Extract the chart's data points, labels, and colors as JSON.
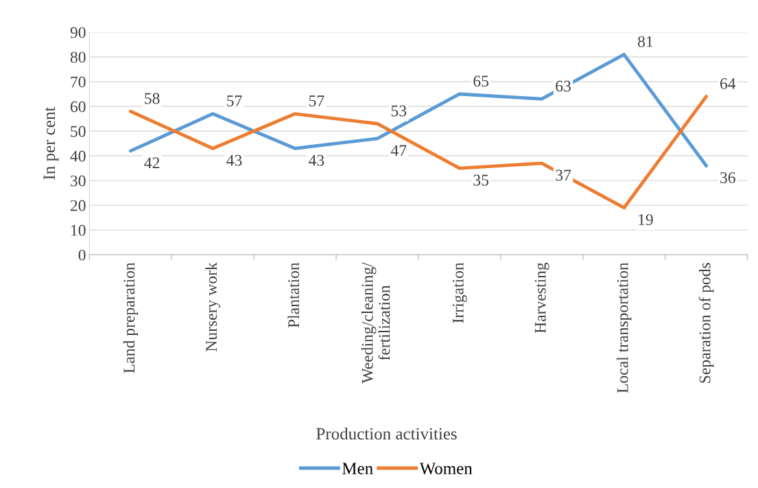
{
  "chart_data": {
    "type": "line",
    "xlabel": "Production activities",
    "ylabel": "In per cent",
    "categories": [
      "Land preparation",
      "Nursery work",
      "Plantation",
      "Weeding/cleaning/\nfertilization",
      "Irrigation",
      "Harvesting",
      "Local transportation",
      "Separation of pods"
    ],
    "series": [
      {
        "name": "Men",
        "color": "#5b9bd5",
        "values": [
          42,
          57,
          43,
          47,
          65,
          63,
          81,
          36
        ]
      },
      {
        "name": "Women",
        "color": "#ed7d31",
        "values": [
          58,
          43,
          57,
          53,
          35,
          37,
          19,
          64
        ]
      }
    ],
    "ylim": [
      0,
      90
    ],
    "yticks": [
      0,
      10,
      20,
      30,
      40,
      50,
      60,
      70,
      80,
      90
    ],
    "grid": "y",
    "legend": "bottom",
    "data_labels": true,
    "marker": "none",
    "line_style": "solid"
  }
}
